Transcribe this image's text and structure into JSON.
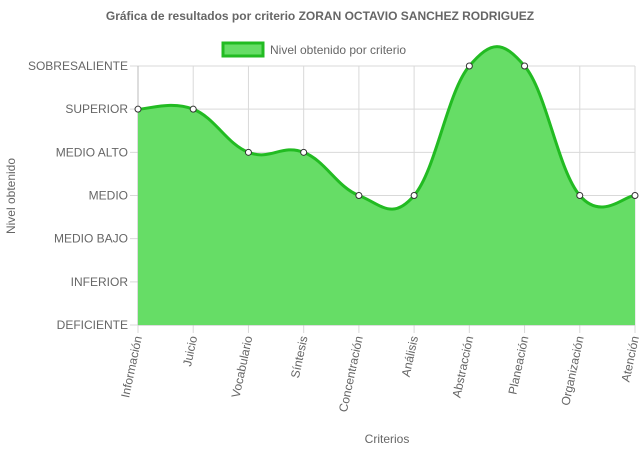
{
  "chart_data": {
    "type": "area",
    "title": "Gráfica de resultados por criterio ZORAN OCTAVIO SANCHEZ RODRIGUEZ",
    "xlabel": "Criterios",
    "ylabel": "Nivel obtenido",
    "categories": [
      "Información",
      "Juicio",
      "Vocabulario",
      "Síntesis",
      "Concentración",
      "Análisis",
      "Abstracción",
      "Planeación",
      "Organización",
      "Atención"
    ],
    "y_levels": [
      "DEFICIENTE",
      "INFERIOR",
      "MEDIO BAJO",
      "MEDIO",
      "MEDIO ALTO",
      "SUPERIOR",
      "SOBRESALIENTE"
    ],
    "ylim": [
      0,
      6
    ],
    "series": [
      {
        "name": "Nivel obtenido por criterio",
        "values": [
          5,
          5,
          4,
          4,
          3,
          3,
          6,
          6,
          3,
          3
        ],
        "fill_color": "#66dd66",
        "line_color": "#22bb22"
      }
    ],
    "grid": true,
    "legend_position": "top"
  }
}
